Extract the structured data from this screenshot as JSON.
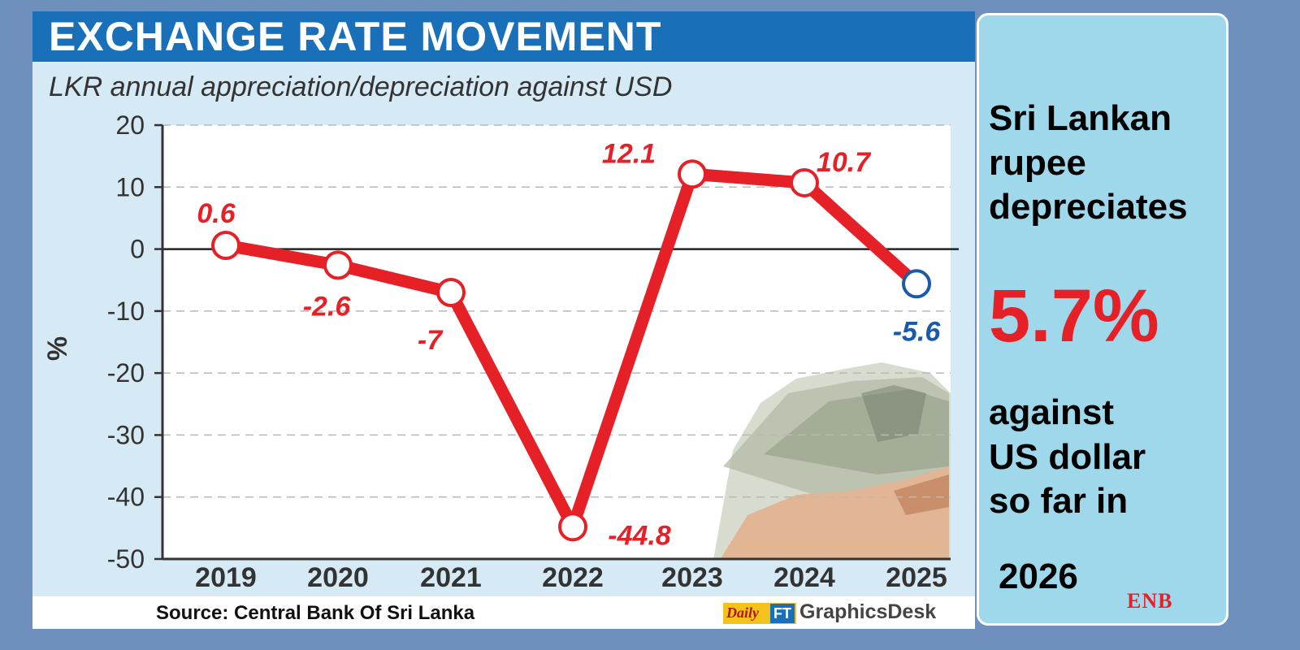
{
  "title": "EXCHANGE RATE MOVEMENT",
  "subtitle": "LKR annual appreciation/depreciation against USD",
  "source": "Source: Central Bank Of Sri Lanka",
  "credit": {
    "daily": "Daily",
    "ft": "FT",
    "desk": "GraphicsDesk"
  },
  "side_panel": {
    "headline": "Sri Lankan\nrupee\ndepreciates",
    "percent": "5.7%",
    "body": "against\nUS dollar\nso far in",
    "year": "2026",
    "brand": "ENB"
  },
  "colors": {
    "line": "#e52127",
    "highlight": "#1a5aa8",
    "header": "#1a6fb9"
  },
  "chart_data": {
    "type": "line",
    "title": "EXCHANGE RATE MOVEMENT",
    "subtitle": "LKR annual appreciation/depreciation against USD",
    "ylabel": "%",
    "xlabel": "",
    "categories": [
      "2019",
      "2020",
      "2021",
      "2022",
      "2023",
      "2024",
      "2025"
    ],
    "values": [
      0.6,
      -2.6,
      -7,
      -44.8,
      12.1,
      10.7,
      -5.6
    ],
    "labels": [
      "0.6",
      "-2.6",
      "-7",
      "-44.8",
      "12.1",
      "10.7",
      "-5.6"
    ],
    "yticks": [
      "20",
      "10",
      "0",
      "-10",
      "-20",
      "-30",
      "-40",
      "-50"
    ],
    "ylim": [
      -50,
      20
    ],
    "grid": "dashed horizontal",
    "highlight_last": true
  }
}
